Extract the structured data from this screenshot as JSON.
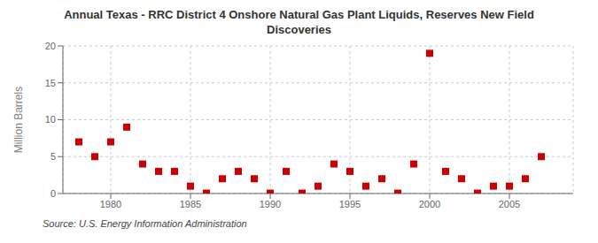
{
  "chart_data": {
    "type": "scatter",
    "title": "Annual Texas - RRC District 4 Onshore Natural Gas Plant Liquids, Reserves New Field\nDiscoveries",
    "ylabel": "Million Barrels",
    "annotations": [
      "Source: U.S. Energy Information Administration"
    ],
    "x": [
      1978,
      1979,
      1980,
      1981,
      1982,
      1983,
      1984,
      1985,
      1986,
      1987,
      1988,
      1989,
      1990,
      1991,
      1992,
      1993,
      1994,
      1995,
      1996,
      1997,
      1998,
      1999,
      2000,
      2001,
      2002,
      2003,
      2004,
      2005,
      2006,
      2007
    ],
    "values": [
      7.0,
      5.0,
      7.0,
      9.0,
      4.0,
      3.0,
      3.0,
      1.0,
      0.05,
      2.0,
      3.0,
      2.0,
      0.05,
      3.0,
      0.05,
      1.0,
      4.0,
      3.0,
      1.0,
      2.0,
      0.05,
      4.0,
      19.0,
      3.0,
      2.0,
      0.05,
      1.0,
      1.0,
      2.0,
      5.0
    ],
    "color": "#cc0000",
    "marker": "square",
    "xlim": [
      1977,
      2009
    ],
    "xticks": [
      1980,
      1985,
      1990,
      1995,
      2000,
      2005
    ],
    "ylim": [
      0,
      20
    ],
    "yticks": [
      0,
      5,
      10,
      15,
      20
    ],
    "grid": true
  }
}
